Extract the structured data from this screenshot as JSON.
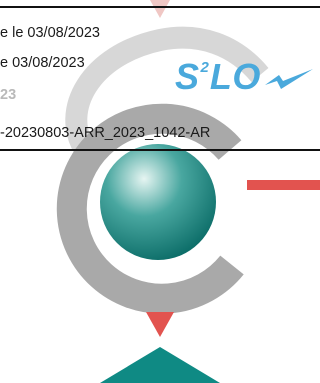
{
  "stamp": {
    "line1": "e le 03/08/2023",
    "line2": "e 03/08/2023",
    "line3": "23",
    "line4": "-20230803-ARR_2023_1042-AR"
  },
  "slo_logo": {
    "text_left": "S",
    "superscript": "2",
    "text_right": "LO",
    "color": "#4aa9dc"
  },
  "logo": {
    "colors": {
      "ring_gray": "#aaaaaa",
      "sphere_teal": "#0e7f79",
      "sphere_highlight": "#e6f5f2",
      "red_accent": "#e2534f",
      "triangle_teal": "#0f8a84"
    }
  }
}
